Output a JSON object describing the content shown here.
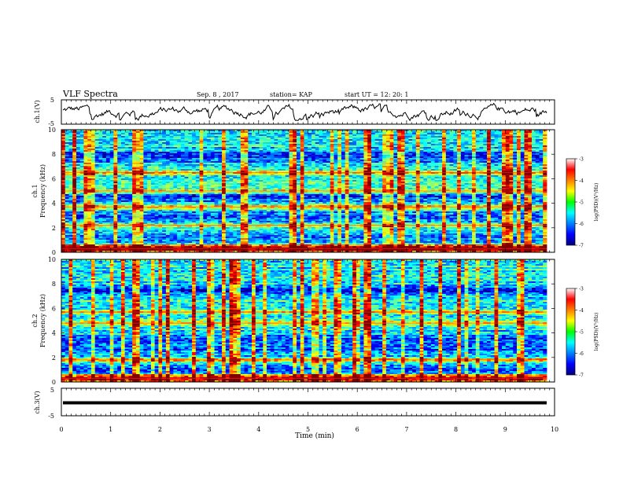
{
  "header": {
    "title": "VLF Spectra",
    "date": "Sep. 8 , 2017",
    "station": "station= KAP",
    "start": "start  UT =   12: 20: 1"
  },
  "chart_data": [
    {
      "type": "line",
      "panel": "ch1-waveform",
      "ylabel": "ch.1(V)",
      "ylim": [
        -5,
        5
      ],
      "yticks": [
        "5",
        "-5"
      ],
      "xlim": [
        0,
        10
      ],
      "shape": "noisy voltage trace mostly between -2 and 3 V"
    },
    {
      "type": "heatmap",
      "panel": "ch1-spectrogram",
      "ylabel": "ch.1\nFrequency (kHz)",
      "ylim": [
        0,
        10
      ],
      "yticks": [
        "0",
        "2",
        "4",
        "6",
        "8",
        "10"
      ],
      "xlim": [
        0,
        10
      ],
      "colorbar": {
        "label": "log(PSD)(V²/Hz)",
        "ticks": [
          "-3",
          "-4",
          "-5",
          "-6",
          "-7"
        ],
        "range": [
          -7,
          -3
        ],
        "colormap": "jet"
      },
      "features": {
        "high_power_bands_khz": [
          0.3,
          2.2,
          3.7,
          5.0,
          6.5
        ],
        "low_power_bands_khz": [
          1.2,
          2.9,
          4.5,
          7.8
        ],
        "vertical_impulses": "frequent broadband sferics across the full duration"
      }
    },
    {
      "type": "heatmap",
      "panel": "ch2-spectrogram",
      "ylabel": "ch.2\nFrequency (kHz)",
      "ylim": [
        0,
        10
      ],
      "yticks": [
        "0",
        "2",
        "4",
        "6",
        "8",
        "10"
      ],
      "xlim": [
        0,
        10
      ],
      "colorbar": {
        "label": "log(PSD)(V²/Hz)",
        "ticks": [
          "-3",
          "-4",
          "-5",
          "-6",
          "-7"
        ],
        "range": [
          -7,
          -3
        ],
        "colormap": "jet"
      },
      "features": {
        "high_power_bands_khz": [
          0.3,
          1.8,
          4.8,
          5.7
        ],
        "low_power_bands_khz": [
          1.0,
          2.6,
          3.5,
          7.5
        ],
        "vertical_impulses": "frequent broadband sferics across the full duration"
      }
    },
    {
      "type": "line",
      "panel": "ch3-waveform",
      "ylabel": "ch.3(V)",
      "ylim": [
        -5,
        5
      ],
      "yticks": [
        "5",
        "-5"
      ],
      "xlim": [
        0,
        10
      ],
      "series": [
        {
          "values": [
            0,
            0
          ]
        }
      ],
      "shape": "flat thick line near 0 V"
    },
    {
      "type": "axis",
      "xlabel": "Time (min)",
      "xticks": [
        "0",
        "1",
        "2",
        "3",
        "4",
        "5",
        "6",
        "7",
        "8",
        "9",
        "10"
      ],
      "xlim": [
        0,
        10
      ],
      "data_end_min": 9.84
    }
  ]
}
